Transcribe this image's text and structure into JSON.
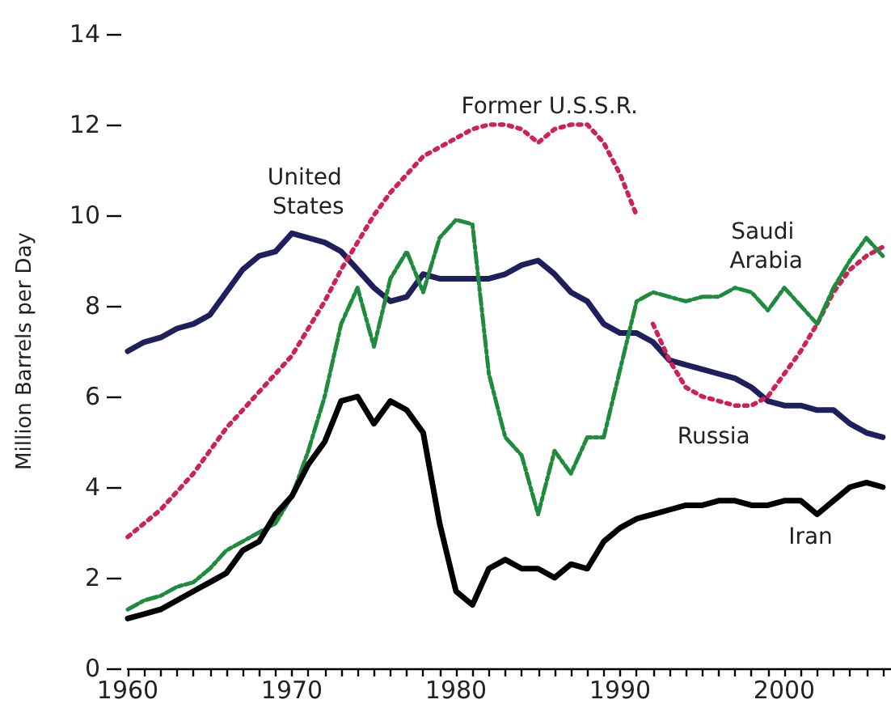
{
  "chart_data": {
    "type": "line",
    "ylabel": "Million Barrels per Day",
    "xlim": [
      1960,
      2006.5
    ],
    "ylim": [
      0,
      14
    ],
    "xticks": [
      1960,
      {
        "value": 1961,
        "label": null
      },
      {
        "value": 1962,
        "label": null
      },
      {
        "value": 1963,
        "label": null
      },
      {
        "value": 1964,
        "label": null
      },
      {
        "value": 1965,
        "label": null
      },
      {
        "value": 1966,
        "label": null
      },
      {
        "value": 1967,
        "label": null
      },
      {
        "value": 1968,
        "label": null
      },
      {
        "value": 1969,
        "label": null
      },
      1970,
      {
        "value": 1971,
        "label": null
      },
      {
        "value": 1972,
        "label": null
      },
      {
        "value": 1973,
        "label": null
      },
      {
        "value": 1974,
        "label": null
      },
      {
        "value": 1975,
        "label": null
      },
      {
        "value": 1976,
        "label": null
      },
      {
        "value": 1977,
        "label": null
      },
      {
        "value": 1978,
        "label": null
      },
      {
        "value": 1979,
        "label": null
      },
      1980,
      {
        "value": 1981,
        "label": null
      },
      {
        "value": 1982,
        "label": null
      },
      {
        "value": 1983,
        "label": null
      },
      {
        "value": 1984,
        "label": null
      },
      {
        "value": 1985,
        "label": null
      },
      {
        "value": 1986,
        "label": null
      },
      {
        "value": 1987,
        "label": null
      },
      {
        "value": 1988,
        "label": null
      },
      {
        "value": 1989,
        "label": null
      },
      1990,
      {
        "value": 1991,
        "label": null
      },
      {
        "value": 1992,
        "label": null
      },
      {
        "value": 1993,
        "label": null
      },
      {
        "value": 1994,
        "label": null
      },
      {
        "value": 1995,
        "label": null
      },
      {
        "value": 1996,
        "label": null
      },
      {
        "value": 1997,
        "label": null
      },
      {
        "value": 1998,
        "label": null
      },
      {
        "value": 1999,
        "label": null
      },
      2000,
      {
        "value": 2001,
        "label": null
      },
      {
        "value": 2002,
        "label": null
      },
      {
        "value": 2003,
        "label": null
      },
      {
        "value": 2004,
        "label": null
      },
      {
        "value": 2005,
        "label": null
      },
      {
        "value": 2006,
        "label": null
      }
    ],
    "yticks": [
      0,
      2,
      4,
      6,
      8,
      10,
      12,
      14
    ],
    "legend": false,
    "marker": "none",
    "x": [
      1960,
      1961,
      1962,
      1963,
      1964,
      1965,
      1966,
      1967,
      1968,
      1969,
      1970,
      1971,
      1972,
      1973,
      1974,
      1975,
      1976,
      1977,
      1978,
      1979,
      1980,
      1981,
      1982,
      1983,
      1984,
      1985,
      1986,
      1987,
      1988,
      1989,
      1990,
      1991,
      1992,
      1993,
      1994,
      1995,
      1996,
      1997,
      1998,
      1999,
      2000,
      2001,
      2002,
      2003,
      2004,
      2005,
      2006
    ],
    "series": [
      {
        "name": "United States",
        "color": "#1f1f5e",
        "line_style": "solid",
        "values": [
          7.0,
          7.2,
          7.3,
          7.5,
          7.6,
          7.8,
          8.3,
          8.8,
          9.1,
          9.2,
          9.6,
          9.5,
          9.4,
          9.2,
          8.8,
          8.4,
          8.1,
          8.2,
          8.7,
          8.6,
          8.6,
          8.6,
          8.6,
          8.7,
          8.9,
          9.0,
          8.7,
          8.3,
          8.1,
          7.6,
          7.4,
          7.4,
          7.2,
          6.8,
          6.7,
          6.6,
          6.5,
          6.4,
          6.2,
          5.9,
          5.8,
          5.8,
          5.7,
          5.7,
          5.4,
          5.2,
          5.1
        ]
      },
      {
        "name": "Former U.S.S.R.",
        "color": "#cc2255",
        "line_style": "dotted",
        "x": [
          1960,
          1961,
          1962,
          1963,
          1964,
          1965,
          1966,
          1967,
          1968,
          1969,
          1970,
          1971,
          1972,
          1973,
          1974,
          1975,
          1976,
          1977,
          1978,
          1979,
          1980,
          1981,
          1982,
          1983,
          1984,
          1985,
          1986,
          1987,
          1988,
          1989,
          1990,
          1991
        ],
        "values": [
          2.9,
          3.2,
          3.5,
          3.9,
          4.3,
          4.8,
          5.3,
          5.7,
          6.1,
          6.5,
          6.9,
          7.5,
          8.1,
          8.8,
          9.4,
          10.0,
          10.5,
          10.9,
          11.3,
          11.5,
          11.7,
          11.9,
          12.0,
          12.0,
          11.9,
          11.6,
          11.9,
          12.0,
          12.0,
          11.6,
          10.9,
          10.0
        ]
      },
      {
        "name": "Russia",
        "color": "#cc2255",
        "line_style": "dotted",
        "x": [
          1992,
          1993,
          1994,
          1995,
          1996,
          1997,
          1998,
          1999,
          2000,
          2001,
          2002,
          2003,
          2004,
          2005,
          2006
        ],
        "values": [
          7.6,
          6.8,
          6.2,
          6.0,
          5.9,
          5.8,
          5.8,
          6.0,
          6.5,
          7.0,
          7.6,
          8.3,
          8.8,
          9.1,
          9.3
        ]
      },
      {
        "name": "Saudi Arabia",
        "color": "#1e8c3c",
        "line_style": "dashed",
        "values": [
          1.3,
          1.5,
          1.6,
          1.8,
          1.9,
          2.2,
          2.6,
          2.8,
          3.0,
          3.2,
          3.8,
          4.8,
          6.0,
          7.6,
          8.4,
          7.1,
          8.6,
          9.2,
          8.3,
          9.5,
          9.9,
          9.8,
          6.5,
          5.1,
          4.7,
          3.4,
          4.8,
          4.3,
          5.1,
          5.1,
          6.6,
          8.1,
          8.3,
          8.2,
          8.1,
          8.2,
          8.2,
          8.4,
          8.3,
          7.9,
          8.4,
          8.0,
          7.6,
          8.4,
          9.0,
          9.5,
          9.1
        ]
      },
      {
        "name": "Iran",
        "color": "#000000",
        "line_style": "solid",
        "values": [
          1.1,
          1.2,
          1.3,
          1.5,
          1.7,
          1.9,
          2.1,
          2.6,
          2.8,
          3.4,
          3.8,
          4.5,
          5.0,
          5.9,
          6.0,
          5.4,
          5.9,
          5.7,
          5.2,
          3.2,
          1.7,
          1.4,
          2.2,
          2.4,
          2.2,
          2.2,
          2.0,
          2.3,
          2.2,
          2.8,
          3.1,
          3.3,
          3.4,
          3.5,
          3.6,
          3.6,
          3.7,
          3.7,
          3.6,
          3.6,
          3.7,
          3.7,
          3.4,
          3.7,
          4.0,
          4.1,
          4.0
        ]
      }
    ]
  }
}
